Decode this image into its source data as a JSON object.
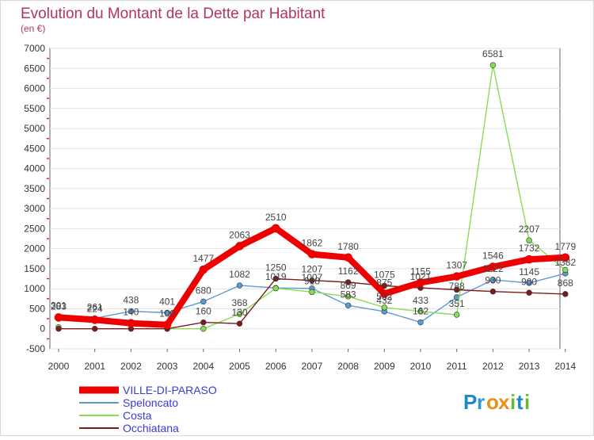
{
  "chart_data": {
    "type": "line",
    "title": "Evolution du Montant de la Dette par Habitant",
    "subtitle": "(en €)",
    "xlabel": "",
    "ylabel": "",
    "x": [
      "2000",
      "2001",
      "2002",
      "2003",
      "2004",
      "2005",
      "2006",
      "2007",
      "2008",
      "2009",
      "2010",
      "2011",
      "2012",
      "2013",
      "2014"
    ],
    "ylim": [
      -500,
      7000
    ],
    "yticks": [
      "-500",
      "0",
      "500",
      "1000",
      "1500",
      "2000",
      "2500",
      "3000",
      "3500",
      "4000",
      "4500",
      "5000",
      "5500",
      "6000",
      "6500",
      "7000"
    ],
    "ytick_values": [
      -500,
      0,
      500,
      1000,
      1500,
      2000,
      2500,
      3000,
      3500,
      4000,
      4500,
      5000,
      5500,
      6000,
      6500,
      7000
    ],
    "grid": true,
    "legend_position": "bottom-left",
    "series": [
      {
        "name": "VILLE-DI-PARASO",
        "color": "#ee0000",
        "emphasis": true,
        "values": [
          283,
          224,
          140,
          100,
          1477,
          2063,
          2510,
          1862,
          1780,
          875,
          1155,
          1307,
          1546,
          1732,
          1779
        ],
        "labels": [
          "283",
          "224",
          "140",
          "100",
          "1477",
          "2063",
          "2510",
          "1862",
          "1780",
          "875",
          "1155",
          "1307",
          "1546",
          "1732",
          "1779"
        ]
      },
      {
        "name": "Speloncato",
        "color": "#5b9bd5",
        "values": [
          301,
          261,
          438,
          401,
          680,
          1082,
          1019,
          1007,
          583,
          432,
          162,
          788,
          1222,
          1145,
          1382
        ],
        "labels": [
          "301",
          "261",
          "438",
          "401",
          "680",
          "1082",
          "1019",
          "1007",
          "583",
          "432",
          "162",
          "788",
          "1222",
          "1145",
          "1382"
        ]
      },
      {
        "name": "Costa",
        "color": "#88dd55",
        "values": [
          40,
          null,
          null,
          0,
          0,
          368,
          1012,
          918,
          809,
          532,
          433,
          351,
          6581,
          2207,
          1470
        ],
        "labels": [
          "",
          "",
          "",
          "",
          "",
          "368",
          "",
          "918",
          "809",
          "532",
          "433",
          "351",
          "6581",
          "2207",
          ""
        ]
      },
      {
        "name": "Occhiatana",
        "color": "#7b1b1b",
        "values": [
          0,
          0,
          0,
          0,
          160,
          130,
          1250,
          1207,
          1162,
          1075,
          1021,
          975,
          930,
          900,
          868
        ],
        "labels": [
          "",
          "",
          "",
          "",
          "160",
          "130",
          "1250",
          "1207",
          "1162",
          "1075",
          "1021",
          "",
          "930",
          "900",
          "868"
        ]
      }
    ]
  },
  "logo": {
    "text": "Proxiti",
    "letters": [
      "P",
      "r",
      "o",
      "x",
      "i",
      "t",
      "i"
    ],
    "colors": [
      "#1e88c8",
      "#2e9ad0",
      "#e89018",
      "#e89018",
      "#68b830",
      "#1e88c8",
      "#68b830"
    ]
  }
}
